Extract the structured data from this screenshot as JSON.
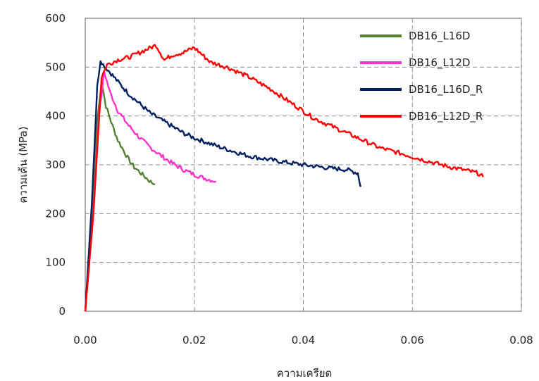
{
  "chart_data": {
    "type": "line",
    "title": "",
    "xlabel": "ความเครียด",
    "ylabel": "ความเค้น (MPa)",
    "xlim": [
      0,
      0.08
    ],
    "ylim": [
      0,
      600
    ],
    "x_ticks": [
      "0.00",
      "0.02",
      "0.04",
      "0.06",
      "0.08"
    ],
    "x_tick_values": [
      0,
      0.02,
      0.04,
      0.06,
      0.08
    ],
    "y_ticks": [
      "0",
      "100",
      "200",
      "300",
      "400",
      "500",
      "600"
    ],
    "y_tick_values": [
      0,
      100,
      200,
      300,
      400,
      500,
      600
    ],
    "grid": "dashed",
    "legend_position": "top-right",
    "series": [
      {
        "name": "DB16_L16D",
        "color": "#538135",
        "points": [
          [
            0,
            0
          ],
          [
            0.0012,
            180
          ],
          [
            0.0022,
            390
          ],
          [
            0.003,
            470
          ],
          [
            0.0038,
            420
          ],
          [
            0.005,
            380
          ],
          [
            0.006,
            350
          ],
          [
            0.007,
            330
          ],
          [
            0.008,
            310
          ],
          [
            0.009,
            295
          ],
          [
            0.01,
            285
          ],
          [
            0.011,
            275
          ],
          [
            0.012,
            265
          ],
          [
            0.0128,
            260
          ]
        ]
      },
      {
        "name": "DB16_L12D",
        "color": "#FF33CC",
        "points": [
          [
            0,
            0
          ],
          [
            0.0015,
            200
          ],
          [
            0.0025,
            400
          ],
          [
            0.0035,
            490
          ],
          [
            0.0045,
            450
          ],
          [
            0.006,
            410
          ],
          [
            0.008,
            380
          ],
          [
            0.01,
            355
          ],
          [
            0.012,
            335
          ],
          [
            0.014,
            318
          ],
          [
            0.016,
            303
          ],
          [
            0.018,
            290
          ],
          [
            0.02,
            280
          ],
          [
            0.022,
            272
          ],
          [
            0.024,
            266
          ]
        ]
      },
      {
        "name": "DB16_L16D_R",
        "color": "#002060",
        "points": [
          [
            0,
            0
          ],
          [
            0.0012,
            220
          ],
          [
            0.0022,
            460
          ],
          [
            0.0028,
            515
          ],
          [
            0.0033,
            505
          ],
          [
            0.0045,
            490
          ],
          [
            0.006,
            470
          ],
          [
            0.008,
            445
          ],
          [
            0.01,
            425
          ],
          [
            0.012,
            405
          ],
          [
            0.015,
            385
          ],
          [
            0.018,
            365
          ],
          [
            0.02,
            355
          ],
          [
            0.025,
            335
          ],
          [
            0.03,
            318
          ],
          [
            0.035,
            308
          ],
          [
            0.04,
            300
          ],
          [
            0.045,
            293
          ],
          [
            0.048,
            290
          ],
          [
            0.05,
            283
          ],
          [
            0.0505,
            255
          ]
        ]
      },
      {
        "name": "DB16_L12D_R",
        "color": "#FF0000",
        "points": [
          [
            0,
            0
          ],
          [
            0.0015,
            200
          ],
          [
            0.003,
            480
          ],
          [
            0.004,
            505
          ],
          [
            0.006,
            515
          ],
          [
            0.008,
            520
          ],
          [
            0.01,
            530
          ],
          [
            0.013,
            545
          ],
          [
            0.0145,
            515
          ],
          [
            0.016,
            525
          ],
          [
            0.018,
            530
          ],
          [
            0.02,
            540
          ],
          [
            0.0215,
            525
          ],
          [
            0.023,
            510
          ],
          [
            0.026,
            500
          ],
          [
            0.03,
            480
          ],
          [
            0.034,
            455
          ],
          [
            0.038,
            425
          ],
          [
            0.042,
            395
          ],
          [
            0.046,
            375
          ],
          [
            0.05,
            355
          ],
          [
            0.054,
            335
          ],
          [
            0.058,
            323
          ],
          [
            0.062,
            310
          ],
          [
            0.066,
            298
          ],
          [
            0.07,
            288
          ],
          [
            0.072,
            283
          ],
          [
            0.073,
            275
          ]
        ]
      }
    ]
  }
}
